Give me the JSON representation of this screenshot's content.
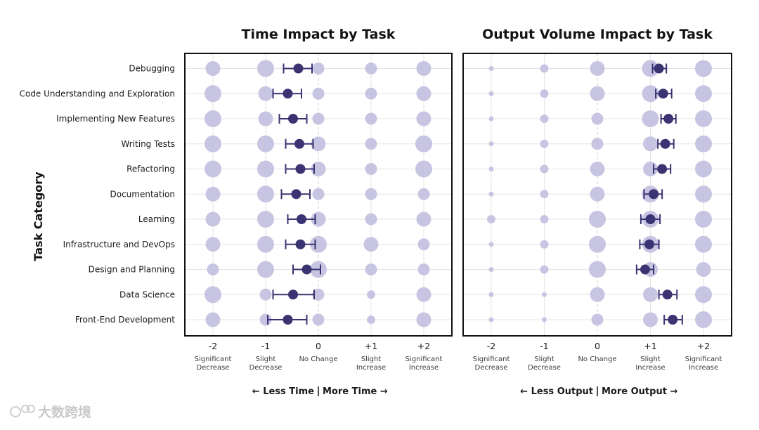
{
  "chart_data": [
    {
      "type": "scatter",
      "title": "Time Impact by Task",
      "ylabel": "Task Category",
      "xlim": [
        -2,
        2
      ],
      "x_ticks": [
        -2,
        -1,
        0,
        1,
        2
      ],
      "x_tick_labels": [
        "-2",
        "-1",
        "0",
        "+1",
        "+2"
      ],
      "x_tick_sublabels": [
        "Significant\nDecrease",
        "Slight\nDecrease",
        "No Change",
        "Slight\nIncrease",
        "Significant\nIncrease"
      ],
      "direction_label": {
        "left": "←  Less Time",
        "right": "More Time  →"
      },
      "categories": [
        "Debugging",
        "Code Understanding and Exploration",
        "Implementing New Features",
        "Writing Tests",
        "Refactoring",
        "Documentation",
        "Learning",
        "Infrastructure and DevOps",
        "Design and Planning",
        "Data Science",
        "Front-End Development"
      ],
      "distribution_levels": [
        -2,
        -1,
        0,
        1,
        2
      ],
      "distribution_sizes": [
        [
          2,
          3,
          1,
          1,
          2
        ],
        [
          3,
          2,
          1,
          1,
          2
        ],
        [
          3,
          2,
          1,
          1,
          2
        ],
        [
          3,
          3,
          2,
          1,
          3
        ],
        [
          3,
          3,
          2,
          1,
          3
        ],
        [
          2,
          3,
          1,
          1,
          1
        ],
        [
          2,
          3,
          2,
          1,
          2
        ],
        [
          2,
          3,
          3,
          2,
          1
        ],
        [
          1,
          3,
          3,
          1,
          1
        ],
        [
          3,
          1,
          1,
          0,
          2
        ],
        [
          2,
          1,
          1,
          0,
          2
        ]
      ],
      "means": [
        -0.38,
        -0.58,
        -0.48,
        -0.36,
        -0.34,
        -0.42,
        -0.32,
        -0.34,
        -0.22,
        -0.48,
        -0.58
      ],
      "ci_low": [
        -0.66,
        -0.86,
        -0.74,
        -0.62,
        -0.62,
        -0.7,
        -0.58,
        -0.62,
        -0.48,
        -0.86,
        -0.96
      ],
      "ci_high": [
        -0.12,
        -0.32,
        -0.22,
        -0.1,
        -0.08,
        -0.16,
        -0.06,
        -0.06,
        0.04,
        -0.08,
        -0.22
      ]
    },
    {
      "type": "scatter",
      "title": "Output Volume Impact by Task",
      "xlim": [
        -2,
        2
      ],
      "x_ticks": [
        -2,
        -1,
        0,
        1,
        2
      ],
      "x_tick_labels": [
        "-2",
        "-1",
        "0",
        "+1",
        "+2"
      ],
      "x_tick_sublabels": [
        "Significant\nDecrease",
        "Slight\nDecrease",
        "No Change",
        "Slight\nIncrease",
        "Significant\nIncrease"
      ],
      "direction_label": {
        "left": "←  Less Output",
        "right": "More Output  →"
      },
      "categories": [
        "Debugging",
        "Code Understanding and Exploration",
        "Implementing New Features",
        "Writing Tests",
        "Refactoring",
        "Documentation",
        "Learning",
        "Infrastructure and DevOps",
        "Design and Planning",
        "Data Science",
        "Front-End Development"
      ],
      "distribution_levels": [
        -2,
        -1,
        0,
        1,
        2
      ],
      "distribution_sizes": [
        [
          -1,
          0,
          2,
          3,
          3
        ],
        [
          -1,
          0,
          2,
          3,
          3
        ],
        [
          -1,
          0,
          1,
          3,
          3
        ],
        [
          -1,
          0,
          1,
          2,
          3
        ],
        [
          -1,
          0,
          2,
          2,
          3
        ],
        [
          -1,
          0,
          2,
          3,
          3
        ],
        [
          0,
          0,
          3,
          3,
          3
        ],
        [
          -1,
          0,
          3,
          3,
          3
        ],
        [
          -1,
          0,
          3,
          2,
          2
        ],
        [
          -1,
          -1,
          2,
          2,
          3
        ],
        [
          -1,
          -1,
          1,
          2,
          3
        ]
      ],
      "means": [
        1.16,
        1.24,
        1.34,
        1.28,
        1.22,
        1.06,
        1.0,
        0.98,
        0.9,
        1.32,
        1.42
      ],
      "ci_low": [
        1.04,
        1.1,
        1.2,
        1.14,
        1.06,
        0.88,
        0.82,
        0.8,
        0.74,
        1.16,
        1.26
      ],
      "ci_high": [
        1.3,
        1.4,
        1.48,
        1.44,
        1.38,
        1.22,
        1.18,
        1.16,
        1.06,
        1.5,
        1.6
      ]
    }
  ],
  "axis": {
    "ylabel": "Task Category"
  },
  "colors": {
    "dist": "#c4c2e0",
    "mean": "#3b3372",
    "grid": "#e4e4e4",
    "zero": "#d2d2d2",
    "frame": "#111111"
  },
  "watermark": "大数跨境"
}
